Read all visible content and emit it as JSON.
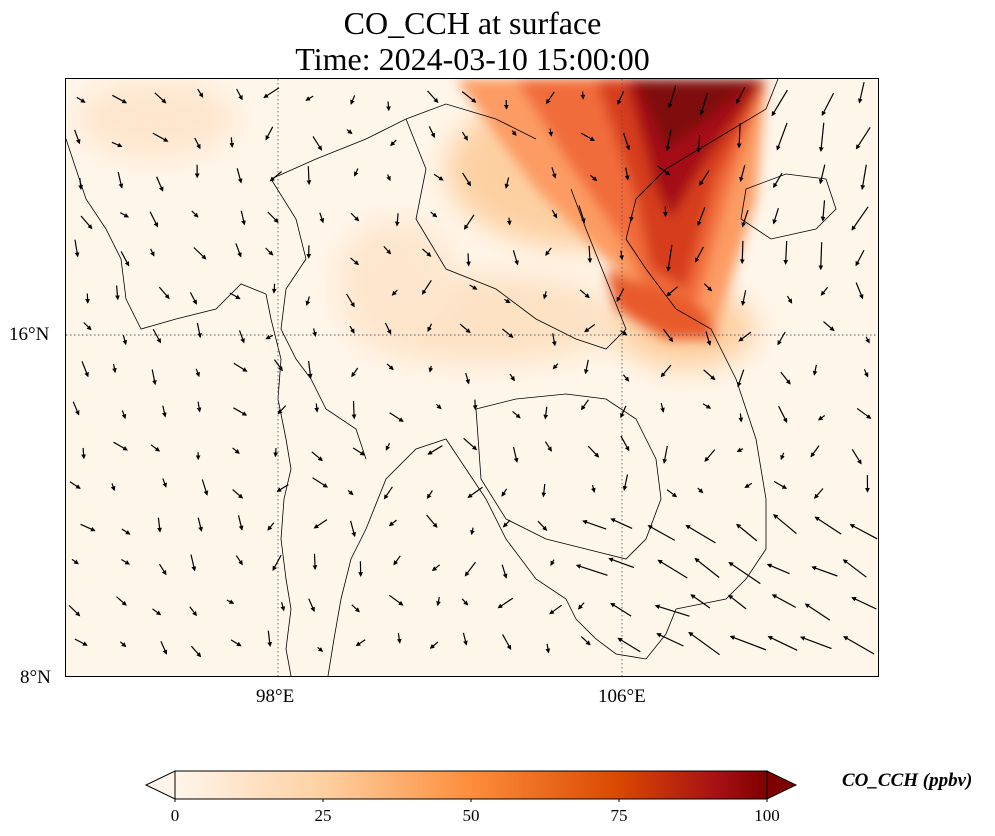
{
  "title": {
    "line1": "CO_CCH at surface",
    "line2": "Time: 2024-03-10 15:00:00"
  },
  "axes": {
    "lat_ticks": [
      "16°N",
      "8°N"
    ],
    "lon_ticks": [
      "98°E",
      "106°E"
    ]
  },
  "colorbar": {
    "label": "CO_CCH (ppbv)",
    "ticks": [
      "0",
      "25",
      "50",
      "75",
      "100"
    ],
    "min": 0,
    "max": 100,
    "colormap": [
      "#fff5eb",
      "#fdd0a2",
      "#fd8d3c",
      "#d94801",
      "#7f2704"
    ]
  },
  "map": {
    "variable": "CO_CCH",
    "units": "ppbv",
    "lon_range": [
      93,
      112
    ],
    "lat_range": [
      8,
      22
    ],
    "plume": "high concentrations (75–100+) over northern Vietnam / Gulf of Tonkin, extending southeast along the Vietnam coast near 16–20°N",
    "wind_vectors": true,
    "gridlines": "dotted"
  }
}
